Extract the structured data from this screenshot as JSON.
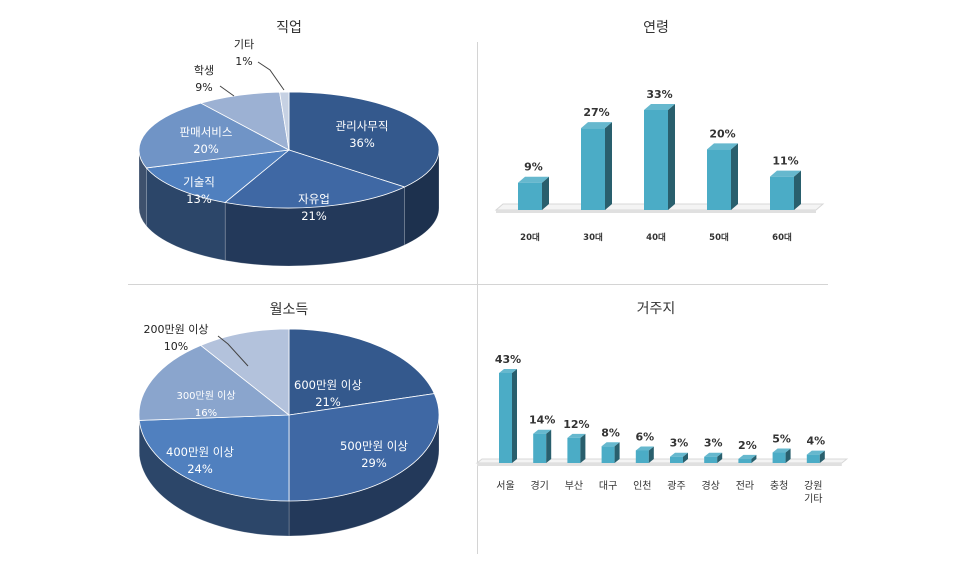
{
  "chart_data": [
    {
      "type": "pie",
      "title": "직업",
      "labels": [
        "관리사무직",
        "자유업",
        "기술직",
        "판매서비스",
        "학생",
        "기타"
      ],
      "values": [
        36,
        21,
        13,
        20,
        9,
        1
      ],
      "value_labels": [
        "36%",
        "21%",
        "13%",
        "20%",
        "9%",
        "1%"
      ],
      "colors": [
        "#34598d",
        "#3f68a4",
        "#5080bf",
        "#7094c6",
        "#9cb1d3",
        "#c6d1e3"
      ]
    },
    {
      "type": "bar",
      "title": "연령",
      "categories": [
        "20대",
        "30대",
        "40대",
        "50대",
        "60대"
      ],
      "values": [
        9,
        27,
        33,
        20,
        11
      ],
      "value_labels": [
        "9%",
        "27%",
        "33%",
        "20%",
        "11%"
      ],
      "colors": [
        "#4bacc6"
      ]
    },
    {
      "type": "pie",
      "title": "월소득",
      "labels": [
        "600만원 이상",
        "500만원 이상",
        "400만원 이상",
        "300만원 이상",
        "200만원 이상"
      ],
      "values": [
        21,
        29,
        24,
        16,
        10
      ],
      "value_labels": [
        "21%",
        "29%",
        "24%",
        "16%",
        "10%"
      ],
      "colors": [
        "#34598d",
        "#3f68a4",
        "#5080bf",
        "#8aa5cd",
        "#b3c2dc"
      ]
    },
    {
      "type": "bar",
      "title": "거주지",
      "categories": [
        "서울",
        "경기",
        "부산",
        "대구",
        "인천",
        "광주",
        "경상",
        "전라",
        "충청",
        "강원\n기타"
      ],
      "values": [
        43,
        14,
        12,
        8,
        6,
        3,
        3,
        2,
        5,
        4
      ],
      "value_labels": [
        "43%",
        "14%",
        "12%",
        "8%",
        "6%",
        "3%",
        "3%",
        "2%",
        "5%",
        "4%"
      ],
      "colors": [
        "#4bacc6"
      ]
    }
  ]
}
